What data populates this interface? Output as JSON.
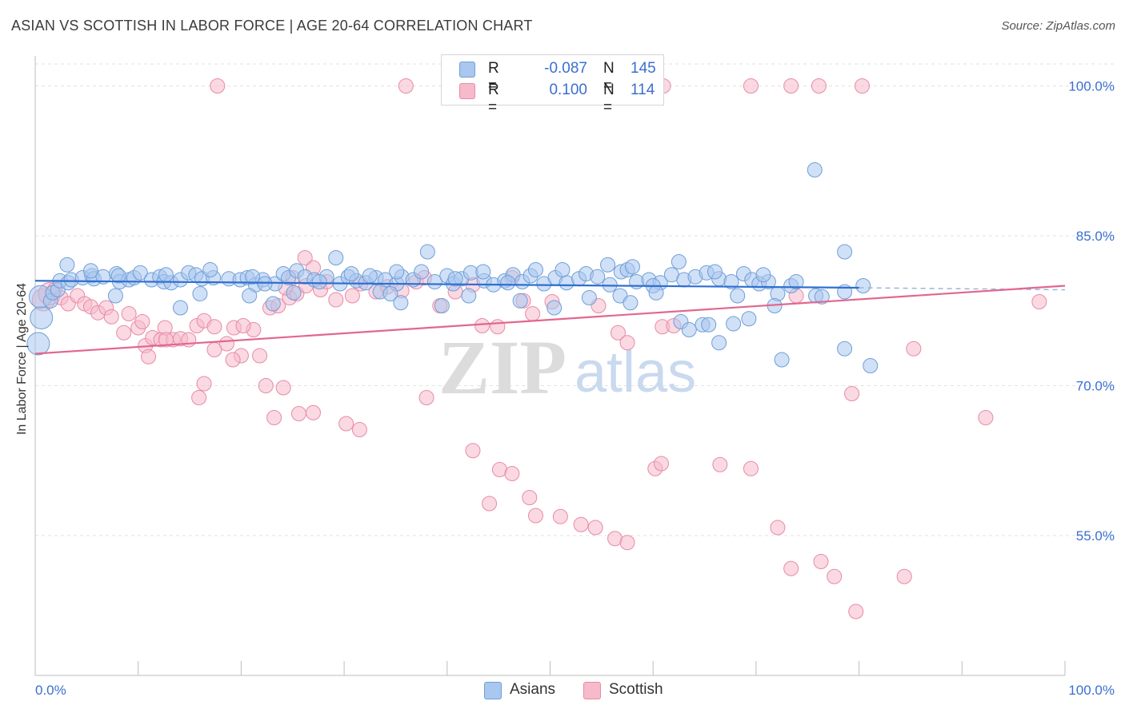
{
  "title": "ASIAN VS SCOTTISH IN LABOR FORCE | AGE 20-64 CORRELATION CHART",
  "source": "Source: ZipAtlas.com",
  "watermark": {
    "zip": "ZIP",
    "atlas": "atlas"
  },
  "legend": {
    "asians": {
      "r_label": "R =",
      "r_value": "-0.087",
      "n_label": "N =",
      "n_value": "145"
    },
    "scottish": {
      "r_label": "R =",
      "r_value": "0.100",
      "n_label": "N =",
      "n_value": "114"
    }
  },
  "bottom_legend": {
    "asians": "Asians",
    "scottish": "Scottish"
  },
  "colors": {
    "asians_fill": "#a9c7ef",
    "asians_stroke": "#6f9fd8",
    "asians_line": "#2f6fd0",
    "scottish_fill": "#f6bacb",
    "scottish_stroke": "#e88aa6",
    "scottish_line": "#e2678f",
    "tick_label": "#3a6fd0",
    "grid": "#e2e2e2"
  },
  "chart_data": {
    "type": "scatter",
    "title": "ASIAN VS SCOTTISH IN LABOR FORCE | AGE 20-64 CORRELATION CHART",
    "xlabel": "",
    "ylabel": "In Labor Force | Age 20-64",
    "xlim": [
      0,
      100
    ],
    "ylim": [
      41,
      103
    ],
    "x_tick_labels": [
      "0.0%",
      "100.0%"
    ],
    "y_ticks": [
      55,
      70,
      85,
      100
    ],
    "y_tick_labels": [
      "55.0%",
      "70.0%",
      "85.0%",
      "100.0%"
    ],
    "grid": true,
    "legend_placement": "top-center",
    "series": [
      {
        "name": "Asians",
        "trend": {
          "x0": 0,
          "y0": 80.5,
          "x1": 80,
          "y1": 79.8,
          "dashed_to": 100,
          "dashed_y": 79.6
        },
        "points": [
          [
            0.3,
            74.2
          ],
          [
            0.6,
            76.8
          ],
          [
            0.5,
            78.9
          ],
          [
            1.5,
            78.5
          ],
          [
            1.7,
            79.3
          ],
          [
            2.2,
            79.6
          ],
          [
            2.4,
            80.5
          ],
          [
            3.2,
            80.3
          ],
          [
            3.5,
            80.6
          ],
          [
            4.6,
            80.8
          ],
          [
            5.5,
            81.0
          ],
          [
            5.7,
            80.7
          ],
          [
            6.6,
            80.9
          ],
          [
            7.9,
            81.2
          ],
          [
            8.2,
            80.4
          ],
          [
            9.1,
            80.6
          ],
          [
            9.6,
            80.8
          ],
          [
            10.2,
            81.3
          ],
          [
            11.3,
            80.6
          ],
          [
            12.1,
            80.9
          ],
          [
            12.5,
            80.4
          ],
          [
            13.2,
            80.3
          ],
          [
            14.1,
            80.6
          ],
          [
            14.9,
            81.3
          ],
          [
            15.6,
            81.1
          ],
          [
            16.2,
            80.7
          ],
          [
            17.3,
            80.8
          ],
          [
            18.8,
            80.7
          ],
          [
            19.9,
            80.6
          ],
          [
            20.6,
            80.8
          ],
          [
            21.4,
            80.1
          ],
          [
            22.1,
            80.6
          ],
          [
            23.3,
            80.2
          ],
          [
            24.1,
            81.2
          ],
          [
            24.6,
            80.8
          ],
          [
            25.4,
            81.5
          ],
          [
            26.2,
            80.9
          ],
          [
            27.1,
            80.6
          ],
          [
            28.3,
            80.9
          ],
          [
            29.6,
            80.2
          ],
          [
            30.4,
            80.9
          ],
          [
            31.2,
            80.5
          ],
          [
            32.1,
            80.3
          ],
          [
            33.1,
            80.8
          ],
          [
            34.0,
            80.6
          ],
          [
            35.1,
            80.2
          ],
          [
            35.6,
            80.9
          ],
          [
            36.7,
            80.6
          ],
          [
            37.5,
            81.4
          ],
          [
            38.8,
            80.4
          ],
          [
            40.0,
            81.0
          ],
          [
            40.6,
            80.2
          ],
          [
            41.4,
            80.7
          ],
          [
            42.3,
            81.3
          ],
          [
            43.6,
            80.5
          ],
          [
            44.5,
            80.1
          ],
          [
            45.6,
            80.5
          ],
          [
            46.4,
            81.1
          ],
          [
            47.3,
            80.4
          ],
          [
            48.1,
            81.0
          ],
          [
            49.4,
            80.2
          ],
          [
            50.5,
            80.8
          ],
          [
            51.6,
            80.3
          ],
          [
            52.8,
            80.7
          ],
          [
            53.5,
            81.2
          ],
          [
            54.6,
            80.9
          ],
          [
            55.8,
            80.1
          ],
          [
            56.9,
            81.4
          ],
          [
            57.5,
            81.6
          ],
          [
            58.4,
            80.4
          ],
          [
            59.6,
            80.6
          ],
          [
            60.7,
            80.3
          ],
          [
            61.8,
            81.1
          ],
          [
            63.0,
            80.6
          ],
          [
            64.1,
            80.9
          ],
          [
            65.2,
            81.3
          ],
          [
            66.4,
            80.7
          ],
          [
            67.6,
            80.4
          ],
          [
            68.8,
            81.2
          ],
          [
            69.6,
            80.6
          ],
          [
            70.3,
            80.2
          ],
          [
            71.2,
            80.4
          ],
          [
            72.1,
            79.2
          ],
          [
            73.4,
            80.0
          ],
          [
            75.8,
            79.0
          ],
          [
            76.4,
            78.9
          ],
          [
            78.6,
            79.4
          ],
          [
            80.4,
            80.0
          ],
          [
            3.1,
            82.1
          ],
          [
            5.4,
            81.5
          ],
          [
            8.1,
            81.0
          ],
          [
            12.7,
            81.1
          ],
          [
            17.0,
            81.6
          ],
          [
            21.1,
            80.9
          ],
          [
            22.3,
            80.2
          ],
          [
            25.1,
            79.3
          ],
          [
            27.6,
            80.4
          ],
          [
            29.2,
            82.8
          ],
          [
            30.7,
            81.2
          ],
          [
            32.5,
            81.0
          ],
          [
            35.1,
            81.4
          ],
          [
            38.1,
            83.4
          ],
          [
            40.8,
            80.7
          ],
          [
            43.5,
            81.4
          ],
          [
            45.9,
            80.3
          ],
          [
            48.6,
            81.6
          ],
          [
            51.2,
            81.6
          ],
          [
            55.6,
            82.1
          ],
          [
            58.0,
            81.9
          ],
          [
            60.0,
            80.0
          ],
          [
            62.5,
            82.4
          ],
          [
            66.0,
            81.4
          ],
          [
            70.7,
            81.1
          ],
          [
            73.9,
            80.4
          ],
          [
            78.6,
            83.4
          ],
          [
            75.7,
            91.6
          ],
          [
            7.8,
            79.0
          ],
          [
            14.1,
            77.8
          ],
          [
            16.0,
            79.2
          ],
          [
            20.8,
            79.0
          ],
          [
            23.1,
            78.2
          ],
          [
            33.5,
            79.4
          ],
          [
            34.5,
            79.2
          ],
          [
            35.5,
            78.3
          ],
          [
            39.5,
            78.0
          ],
          [
            42.1,
            79.0
          ],
          [
            47.1,
            78.5
          ],
          [
            50.4,
            77.8
          ],
          [
            53.8,
            78.8
          ],
          [
            56.8,
            79.0
          ],
          [
            57.8,
            78.3
          ],
          [
            60.3,
            79.3
          ],
          [
            62.7,
            76.4
          ],
          [
            63.5,
            75.6
          ],
          [
            64.8,
            76.1
          ],
          [
            65.4,
            76.1
          ],
          [
            66.4,
            74.3
          ],
          [
            67.8,
            76.2
          ],
          [
            68.2,
            79.0
          ],
          [
            69.3,
            76.7
          ],
          [
            71.8,
            78.0
          ],
          [
            72.5,
            72.6
          ],
          [
            81.1,
            72.0
          ],
          [
            78.6,
            73.7
          ]
        ]
      },
      {
        "name": "Scottish",
        "trend": {
          "x0": 0,
          "y0": 73.2,
          "x1": 100,
          "y1": 80.0
        },
        "points": [
          [
            0.8,
            78.6
          ],
          [
            1.4,
            79.2
          ],
          [
            1.9,
            79.6
          ],
          [
            2.5,
            78.8
          ],
          [
            3.2,
            78.2
          ],
          [
            4.1,
            79.0
          ],
          [
            4.8,
            78.2
          ],
          [
            5.4,
            77.9
          ],
          [
            6.1,
            77.3
          ],
          [
            6.9,
            77.8
          ],
          [
            7.4,
            76.9
          ],
          [
            8.6,
            75.3
          ],
          [
            9.1,
            77.2
          ],
          [
            10.0,
            75.8
          ],
          [
            10.7,
            74.0
          ],
          [
            11.4,
            74.8
          ],
          [
            12.2,
            74.6
          ],
          [
            12.6,
            75.8
          ],
          [
            13.4,
            74.6
          ],
          [
            14.1,
            74.7
          ],
          [
            14.9,
            74.6
          ],
          [
            15.7,
            76.0
          ],
          [
            16.4,
            76.5
          ],
          [
            17.4,
            75.9
          ],
          [
            18.6,
            74.2
          ],
          [
            19.3,
            75.8
          ],
          [
            20.0,
            73.0
          ],
          [
            21.2,
            75.6
          ],
          [
            22.8,
            77.8
          ],
          [
            23.6,
            78.0
          ],
          [
            24.7,
            78.8
          ],
          [
            25.4,
            79.2
          ],
          [
            26.3,
            80.0
          ],
          [
            27.0,
            81.8
          ],
          [
            27.7,
            79.6
          ],
          [
            28.3,
            80.4
          ],
          [
            29.2,
            78.6
          ],
          [
            30.8,
            79.0
          ],
          [
            31.6,
            80.2
          ],
          [
            33.1,
            79.4
          ],
          [
            34.2,
            79.9
          ],
          [
            35.6,
            79.5
          ],
          [
            37.0,
            80.4
          ],
          [
            37.8,
            80.8
          ],
          [
            39.3,
            78.0
          ],
          [
            40.8,
            79.4
          ],
          [
            42.5,
            80.1
          ],
          [
            43.4,
            76.0
          ],
          [
            44.9,
            75.9
          ],
          [
            46.3,
            80.8
          ],
          [
            47.4,
            78.5
          ],
          [
            48.3,
            77.2
          ],
          [
            50.2,
            78.4
          ],
          [
            54.7,
            78.0
          ],
          [
            56.6,
            75.3
          ],
          [
            57.5,
            74.3
          ],
          [
            60.9,
            75.9
          ],
          [
            62.0,
            76.0
          ],
          [
            73.9,
            79.0
          ],
          [
            24.3,
            79.8
          ],
          [
            25.0,
            80.8
          ],
          [
            26.2,
            82.8
          ],
          [
            10.4,
            76.4
          ],
          [
            11.0,
            72.9
          ],
          [
            12.7,
            74.6
          ],
          [
            16.4,
            70.2
          ],
          [
            15.9,
            68.8
          ],
          [
            17.4,
            73.6
          ],
          [
            19.2,
            72.6
          ],
          [
            20.2,
            76.0
          ],
          [
            21.8,
            73.0
          ],
          [
            22.4,
            70.0
          ],
          [
            24.1,
            69.8
          ],
          [
            25.6,
            67.2
          ],
          [
            27.0,
            67.3
          ],
          [
            23.2,
            66.8
          ],
          [
            30.2,
            66.2
          ],
          [
            31.5,
            65.6
          ],
          [
            38.0,
            68.8
          ],
          [
            42.5,
            63.5
          ],
          [
            44.1,
            58.2
          ],
          [
            45.1,
            61.6
          ],
          [
            46.3,
            61.2
          ],
          [
            48.0,
            58.8
          ],
          [
            48.6,
            57.0
          ],
          [
            51.0,
            56.9
          ],
          [
            53.0,
            56.1
          ],
          [
            54.4,
            55.8
          ],
          [
            56.3,
            54.7
          ],
          [
            57.5,
            54.3
          ],
          [
            60.2,
            61.7
          ],
          [
            60.8,
            62.2
          ],
          [
            66.5,
            62.1
          ],
          [
            69.5,
            61.7
          ],
          [
            72.1,
            55.8
          ],
          [
            73.4,
            51.7
          ],
          [
            76.3,
            52.4
          ],
          [
            77.6,
            50.9
          ],
          [
            79.7,
            47.4
          ],
          [
            84.4,
            50.9
          ],
          [
            92.3,
            66.8
          ],
          [
            97.5,
            78.4
          ],
          [
            79.3,
            69.2
          ],
          [
            85.3,
            73.7
          ],
          [
            17.7,
            100
          ],
          [
            36.0,
            100
          ],
          [
            41.0,
            100
          ],
          [
            56.0,
            100
          ],
          [
            58.5,
            100
          ],
          [
            61.0,
            100
          ],
          [
            69.5,
            100
          ],
          [
            73.4,
            100
          ],
          [
            76.1,
            100
          ],
          [
            80.3,
            100
          ]
        ]
      }
    ]
  }
}
